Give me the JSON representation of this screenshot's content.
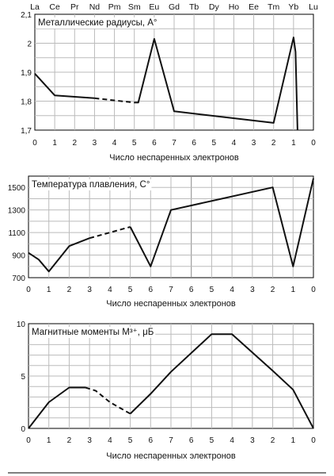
{
  "elements": [
    "La",
    "Ce",
    "Pr",
    "Nd",
    "Pm",
    "Sm",
    "Eu",
    "Gd",
    "Tb",
    "Dy",
    "Ho",
    "Ee",
    "Tm",
    "Yb",
    "Lu"
  ],
  "chart_data": [
    {
      "type": "line",
      "title": "Металлические радиусы, A°",
      "xlabel": "Число неспаренных электронов",
      "x_ticks": [
        "0",
        "1",
        "2",
        "3",
        "4",
        "5",
        "6",
        "7",
        "6",
        "5",
        "4",
        "3",
        "2",
        "1",
        "0"
      ],
      "yticks": [
        "1,7",
        "1,8",
        "1,9",
        "2",
        "2,1"
      ],
      "ylim": [
        1.7,
        2.1
      ],
      "grid": true,
      "solid": [
        [
          0,
          1.895
        ],
        [
          1,
          1.82
        ],
        [
          3,
          1.81
        ]
      ],
      "dashed": [
        [
          3,
          1.81
        ],
        [
          5,
          1.795
        ]
      ],
      "solid2": [
        [
          5,
          1.795
        ],
        [
          5.2,
          1.795
        ],
        [
          6,
          2.015
        ],
        [
          7,
          1.765
        ],
        [
          12,
          1.725
        ],
        [
          13,
          2.02
        ],
        [
          13.1,
          1.97
        ],
        [
          13.2,
          1.7
        ]
      ]
    },
    {
      "type": "line",
      "title": "Температура плавления, C°",
      "xlabel": "Число неспаренных электронов",
      "x_ticks": [
        "0",
        "1",
        "2",
        "3",
        "4",
        "5",
        "6",
        "7",
        "6",
        "5",
        "4",
        "3",
        "2",
        "1",
        "0"
      ],
      "yticks": [
        "700",
        "900",
        "1100",
        "1300",
        "1500"
      ],
      "ylim": [
        700,
        1600
      ],
      "grid": true,
      "solid": [
        [
          0,
          920
        ],
        [
          0.5,
          860
        ],
        [
          1,
          755
        ],
        [
          2,
          980
        ],
        [
          3,
          1050
        ]
      ],
      "dashed": [
        [
          3,
          1050
        ],
        [
          5,
          1150
        ]
      ],
      "solid2": [
        [
          5,
          1150
        ],
        [
          6,
          800
        ],
        [
          7,
          1300
        ],
        [
          12,
          1500
        ],
        [
          13,
          800
        ],
        [
          14,
          1580
        ]
      ]
    },
    {
      "type": "line",
      "title": "Магнитные моменты M³⁺, μБ",
      "xlabel": "Число неспаренных электронов",
      "x_ticks": [
        "0",
        "1",
        "2",
        "3",
        "4",
        "5",
        "6",
        "7",
        "6",
        "5",
        "4",
        "3",
        "2",
        "1",
        "0"
      ],
      "yticks": [
        "0",
        "5",
        "10"
      ],
      "ylim": [
        0,
        10
      ],
      "grid": true,
      "solid": [
        [
          0,
          0
        ],
        [
          1,
          2.5
        ],
        [
          2,
          3.9
        ],
        [
          2.8,
          3.9
        ]
      ],
      "dashed": [
        [
          2.8,
          3.9
        ],
        [
          3.3,
          3.6
        ],
        [
          4,
          2.5
        ],
        [
          5,
          1.4
        ]
      ],
      "solid2": [
        [
          5,
          1.4
        ],
        [
          6,
          3.3
        ],
        [
          7,
          5.4
        ],
        [
          9,
          9.0
        ],
        [
          10,
          9.0
        ],
        [
          12,
          5.5
        ],
        [
          13,
          3.7
        ],
        [
          14,
          0
        ]
      ]
    }
  ]
}
